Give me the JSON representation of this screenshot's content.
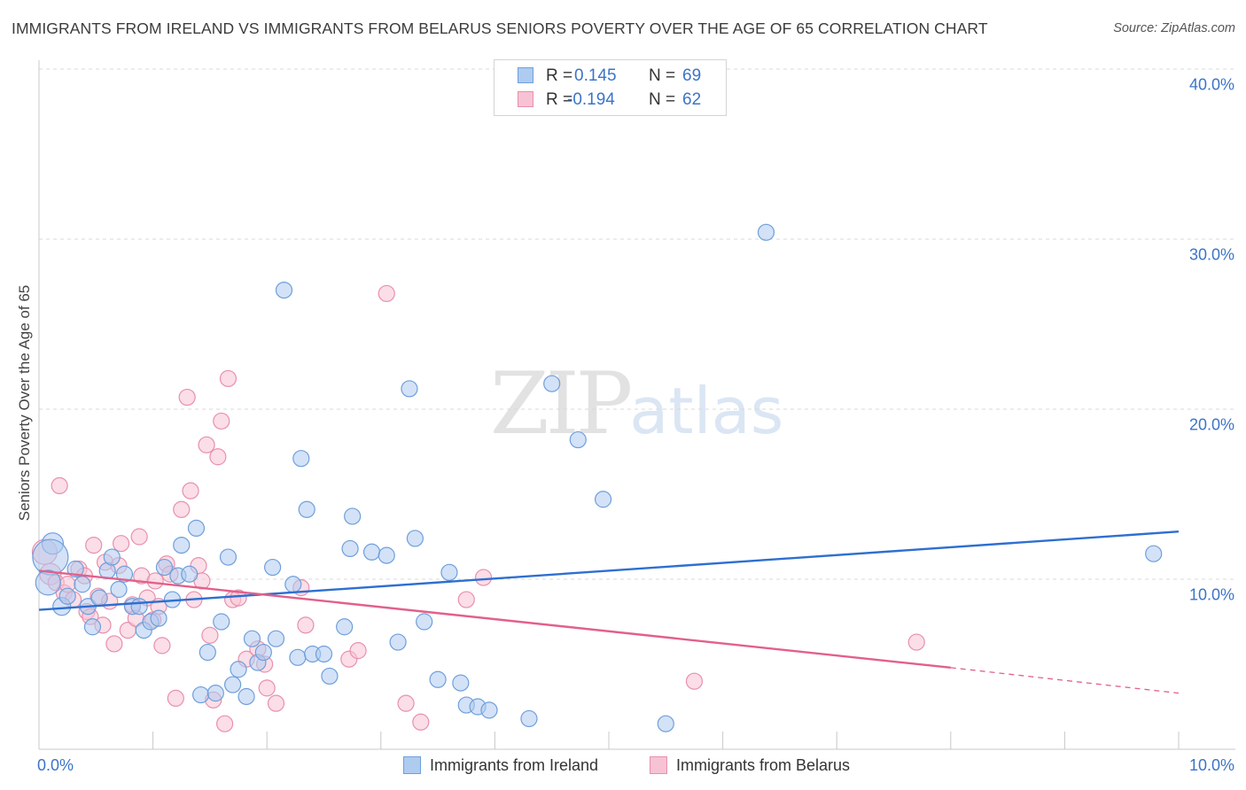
{
  "header": {
    "title": "IMMIGRANTS FROM IRELAND VS IMMIGRANTS FROM BELARUS SENIORS POVERTY OVER THE AGE OF 65 CORRELATION CHART",
    "source": "Source: ZipAtlas.com"
  },
  "watermark": {
    "zip": "ZIP",
    "atlas": "atlas"
  },
  "legend": {
    "r_label": "R =",
    "n_label": "N =",
    "rows": [
      {
        "r": "0.145",
        "n": "69"
      },
      {
        "r": "-0.194",
        "n": "62"
      }
    ]
  },
  "colors": {
    "ireland_fill": "#aecbf0",
    "ireland_stroke": "#6f9fdb",
    "ireland_line": "#2e6fd0",
    "belarus_fill": "#f7c3d4",
    "belarus_stroke": "#e890ad",
    "belarus_line": "#e2608a",
    "axis_text": "#3b74c8",
    "grid": "#d8d8d8"
  },
  "chart_data": {
    "type": "scatter",
    "title": "IMMIGRANTS FROM IRELAND VS IMMIGRANTS FROM BELARUS SENIORS POVERTY OVER THE AGE OF 65 CORRELATION CHART",
    "xlabel": "",
    "ylabel": "Seniors Poverty Over the Age of 65",
    "xlim": [
      0,
      10
    ],
    "ylim": [
      0,
      40
    ],
    "x_tick_labels": [
      "0.0%",
      "10.0%"
    ],
    "y_tick_labels": [
      "10.0%",
      "20.0%",
      "30.0%",
      "40.0%"
    ],
    "y_ticks": [
      10,
      20,
      30,
      40
    ],
    "grid": "horizontal dashed",
    "legend_position": "top-center",
    "series": [
      {
        "name": "Immigrants from Ireland",
        "r": 0.145,
        "n": 69,
        "trend": {
          "x": [
            0,
            10
          ],
          "y": [
            8.2,
            12.8
          ]
        },
        "points": [
          [
            0.12,
            12.1,
            12
          ],
          [
            0.1,
            11.3,
            20
          ],
          [
            0.08,
            9.8,
            14
          ],
          [
            0.2,
            8.4,
            10
          ],
          [
            0.25,
            9.0,
            9
          ],
          [
            0.32,
            10.6,
            9
          ],
          [
            0.38,
            9.7,
            9
          ],
          [
            0.43,
            8.4,
            9
          ],
          [
            0.47,
            7.2,
            9
          ],
          [
            0.53,
            8.9,
            9
          ],
          [
            0.6,
            10.5,
            9
          ],
          [
            0.64,
            11.3,
            9
          ],
          [
            0.7,
            9.4,
            9
          ],
          [
            0.75,
            10.3,
            9
          ],
          [
            0.82,
            8.4,
            9
          ],
          [
            0.88,
            8.4,
            9
          ],
          [
            0.92,
            7.0,
            9
          ],
          [
            0.98,
            7.5,
            9
          ],
          [
            1.05,
            7.7,
            9
          ],
          [
            1.1,
            10.7,
            9
          ],
          [
            1.17,
            8.8,
            9
          ],
          [
            1.22,
            10.2,
            9
          ],
          [
            1.25,
            12.0,
            9
          ],
          [
            1.32,
            10.3,
            9
          ],
          [
            1.38,
            13.0,
            9
          ],
          [
            1.42,
            3.2,
            9
          ],
          [
            1.48,
            5.7,
            9
          ],
          [
            1.55,
            3.3,
            9
          ],
          [
            1.6,
            7.5,
            9
          ],
          [
            1.66,
            11.3,
            9
          ],
          [
            1.7,
            3.8,
            9
          ],
          [
            1.75,
            4.7,
            9
          ],
          [
            1.82,
            3.1,
            9
          ],
          [
            1.87,
            6.5,
            9
          ],
          [
            1.92,
            5.1,
            9
          ],
          [
            1.97,
            5.7,
            9
          ],
          [
            2.05,
            10.7,
            9
          ],
          [
            2.08,
            6.5,
            9
          ],
          [
            2.15,
            27.0,
            9
          ],
          [
            2.23,
            9.7,
            9
          ],
          [
            2.27,
            5.4,
            9
          ],
          [
            2.3,
            17.1,
            9
          ],
          [
            2.35,
            14.1,
            9
          ],
          [
            2.4,
            5.6,
            9
          ],
          [
            2.5,
            5.6,
            9
          ],
          [
            2.55,
            4.3,
            9
          ],
          [
            2.68,
            7.2,
            9
          ],
          [
            2.73,
            11.8,
            9
          ],
          [
            2.75,
            13.7,
            9
          ],
          [
            2.92,
            11.6,
            9
          ],
          [
            3.05,
            11.4,
            9
          ],
          [
            3.15,
            6.3,
            9
          ],
          [
            3.25,
            21.2,
            9
          ],
          [
            3.3,
            12.4,
            9
          ],
          [
            3.38,
            7.5,
            9
          ],
          [
            3.5,
            4.1,
            9
          ],
          [
            3.6,
            10.4,
            9
          ],
          [
            3.7,
            3.9,
            9
          ],
          [
            3.75,
            2.6,
            9
          ],
          [
            3.85,
            2.5,
            9
          ],
          [
            3.95,
            2.3,
            9
          ],
          [
            4.3,
            1.8,
            9
          ],
          [
            4.5,
            21.5,
            9
          ],
          [
            4.73,
            18.2,
            9
          ],
          [
            4.95,
            14.7,
            9
          ],
          [
            5.5,
            1.5,
            9
          ],
          [
            6.38,
            30.4,
            9
          ],
          [
            9.78,
            11.5,
            9
          ]
        ]
      },
      {
        "name": "Immigrants from Belarus",
        "r": -0.194,
        "n": 62,
        "trend": {
          "x": [
            0,
            8
          ],
          "y": [
            10.5,
            4.8
          ]
        },
        "trend_dashed": {
          "x": [
            8,
            10
          ],
          "y": [
            4.8,
            3.3
          ]
        },
        "points": [
          [
            0.05,
            11.6,
            14
          ],
          [
            0.1,
            10.3,
            12
          ],
          [
            0.15,
            9.8,
            9
          ],
          [
            0.18,
            15.5,
            9
          ],
          [
            0.22,
            9.2,
            9
          ],
          [
            0.25,
            9.7,
            9
          ],
          [
            0.3,
            8.8,
            9
          ],
          [
            0.35,
            10.6,
            9
          ],
          [
            0.4,
            10.2,
            9
          ],
          [
            0.42,
            8.1,
            9
          ],
          [
            0.45,
            7.8,
            9
          ],
          [
            0.48,
            12.0,
            9
          ],
          [
            0.52,
            9.0,
            9
          ],
          [
            0.56,
            7.3,
            9
          ],
          [
            0.58,
            11.0,
            9
          ],
          [
            0.62,
            8.7,
            9
          ],
          [
            0.66,
            6.2,
            9
          ],
          [
            0.7,
            10.8,
            9
          ],
          [
            0.72,
            12.1,
            9
          ],
          [
            0.78,
            7.0,
            9
          ],
          [
            0.82,
            8.5,
            9
          ],
          [
            0.85,
            7.7,
            9
          ],
          [
            0.88,
            12.5,
            9
          ],
          [
            0.9,
            10.2,
            9
          ],
          [
            0.95,
            8.9,
            9
          ],
          [
            1.0,
            7.6,
            9
          ],
          [
            1.02,
            9.9,
            9
          ],
          [
            1.05,
            8.4,
            9
          ],
          [
            1.08,
            6.1,
            9
          ],
          [
            1.12,
            10.9,
            9
          ],
          [
            1.15,
            10.3,
            9
          ],
          [
            1.2,
            3.0,
            9
          ],
          [
            1.25,
            14.1,
            9
          ],
          [
            1.3,
            20.7,
            9
          ],
          [
            1.33,
            15.2,
            9
          ],
          [
            1.36,
            8.8,
            9
          ],
          [
            1.4,
            10.8,
            9
          ],
          [
            1.43,
            9.9,
            9
          ],
          [
            1.47,
            17.9,
            9
          ],
          [
            1.5,
            6.7,
            9
          ],
          [
            1.53,
            2.9,
            9
          ],
          [
            1.57,
            17.2,
            9
          ],
          [
            1.6,
            19.3,
            9
          ],
          [
            1.63,
            1.5,
            9
          ],
          [
            1.66,
            21.8,
            9
          ],
          [
            1.7,
            8.8,
            9
          ],
          [
            1.75,
            8.9,
            9
          ],
          [
            1.82,
            5.3,
            9
          ],
          [
            1.92,
            5.9,
            9
          ],
          [
            1.98,
            5.0,
            9
          ],
          [
            2.0,
            3.6,
            9
          ],
          [
            2.08,
            2.7,
            9
          ],
          [
            2.3,
            9.5,
            9
          ],
          [
            2.34,
            7.3,
            9
          ],
          [
            2.72,
            5.3,
            9
          ],
          [
            2.8,
            5.8,
            9
          ],
          [
            3.05,
            26.8,
            9
          ],
          [
            3.22,
            2.7,
            9
          ],
          [
            3.35,
            1.6,
            9
          ],
          [
            3.75,
            8.8,
            9
          ],
          [
            3.9,
            10.1,
            9
          ],
          [
            5.75,
            4.0,
            9
          ],
          [
            7.7,
            6.3,
            9
          ]
        ]
      }
    ]
  }
}
